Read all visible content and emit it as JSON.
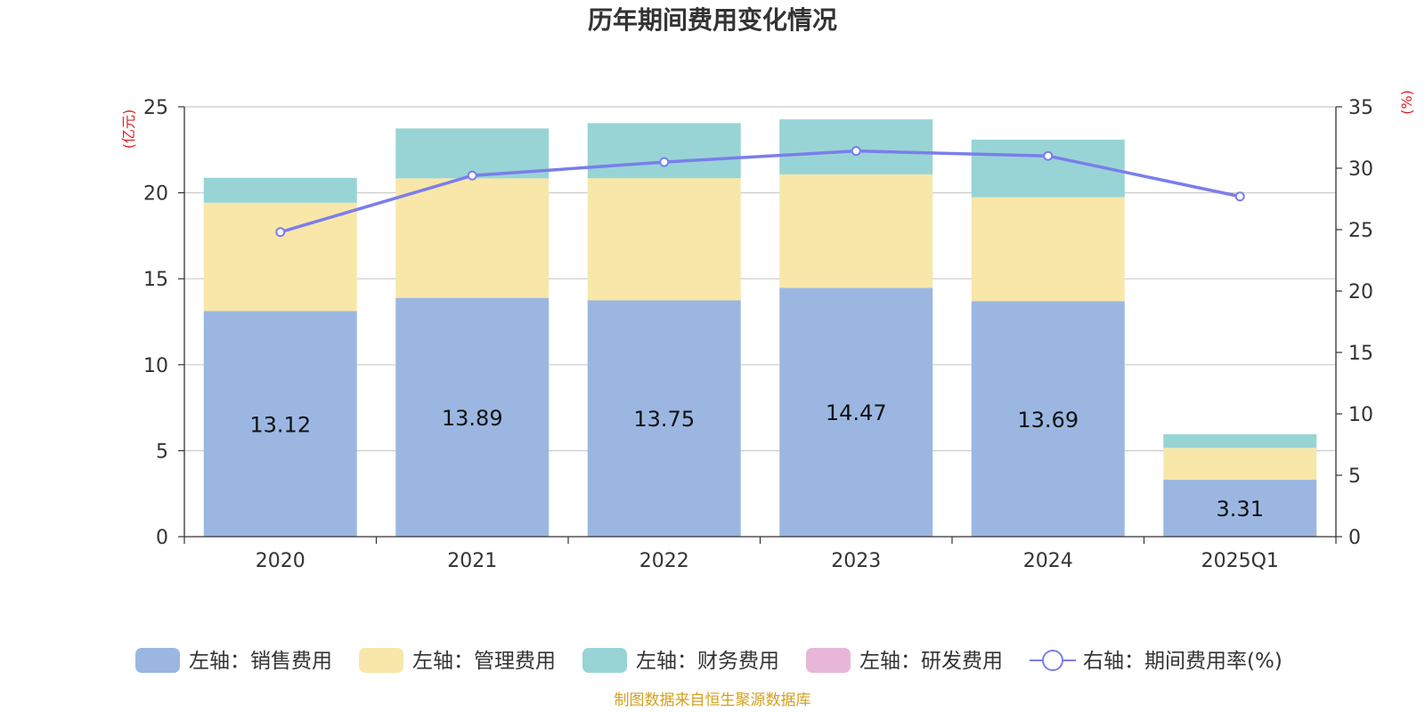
{
  "chart_data": {
    "type": "bar",
    "title": "历年期间费用变化情况",
    "categories": [
      "2020",
      "2021",
      "2022",
      "2023",
      "2024",
      "2025Q1"
    ],
    "left_axis": {
      "unit": "(亿元)",
      "ylim": [
        0,
        25
      ],
      "ticks": [
        "0",
        "5",
        "10",
        "15",
        "20",
        "25"
      ]
    },
    "right_axis": {
      "unit": "(%)",
      "ylim": [
        0,
        35
      ],
      "ticks": [
        "0",
        "5",
        "10",
        "15",
        "20",
        "25",
        "30",
        "35"
      ]
    },
    "series": [
      {
        "name": "左轴：销售费用",
        "type": "bar",
        "axis": "left",
        "color": "#9BB7E1",
        "values": [
          13.12,
          13.89,
          13.75,
          14.47,
          13.69,
          3.31
        ],
        "labels": [
          "13.12",
          "13.89",
          "13.75",
          "14.47",
          "13.69",
          "3.31"
        ]
      },
      {
        "name": "左轴：管理费用",
        "type": "bar",
        "axis": "left",
        "color": "#F8E7A9",
        "values": [
          6.3,
          6.95,
          7.1,
          6.6,
          6.05,
          1.85
        ]
      },
      {
        "name": "左轴：财务费用",
        "type": "bar",
        "axis": "left",
        "color": "#98D4D5",
        "values": [
          1.45,
          2.9,
          3.2,
          3.2,
          3.35,
          0.8
        ]
      },
      {
        "name": "左轴：研发费用",
        "type": "bar",
        "axis": "left",
        "color": "#E8B6D9",
        "values": [
          0,
          0,
          0,
          0,
          0,
          0
        ]
      },
      {
        "name": "右轴：期间费用率(%)",
        "type": "line",
        "axis": "right",
        "color": "#7A7EEC",
        "values": [
          24.8,
          29.4,
          30.5,
          31.4,
          31.0,
          27.7
        ]
      }
    ],
    "grid": true,
    "legend_position": "bottom"
  },
  "source_text": "制图数据来自恒生聚源数据库",
  "colors": {
    "unit_red": "#E02020",
    "source_gold": "#D4A020",
    "axis": "#333333",
    "grid": "#cccccc"
  }
}
